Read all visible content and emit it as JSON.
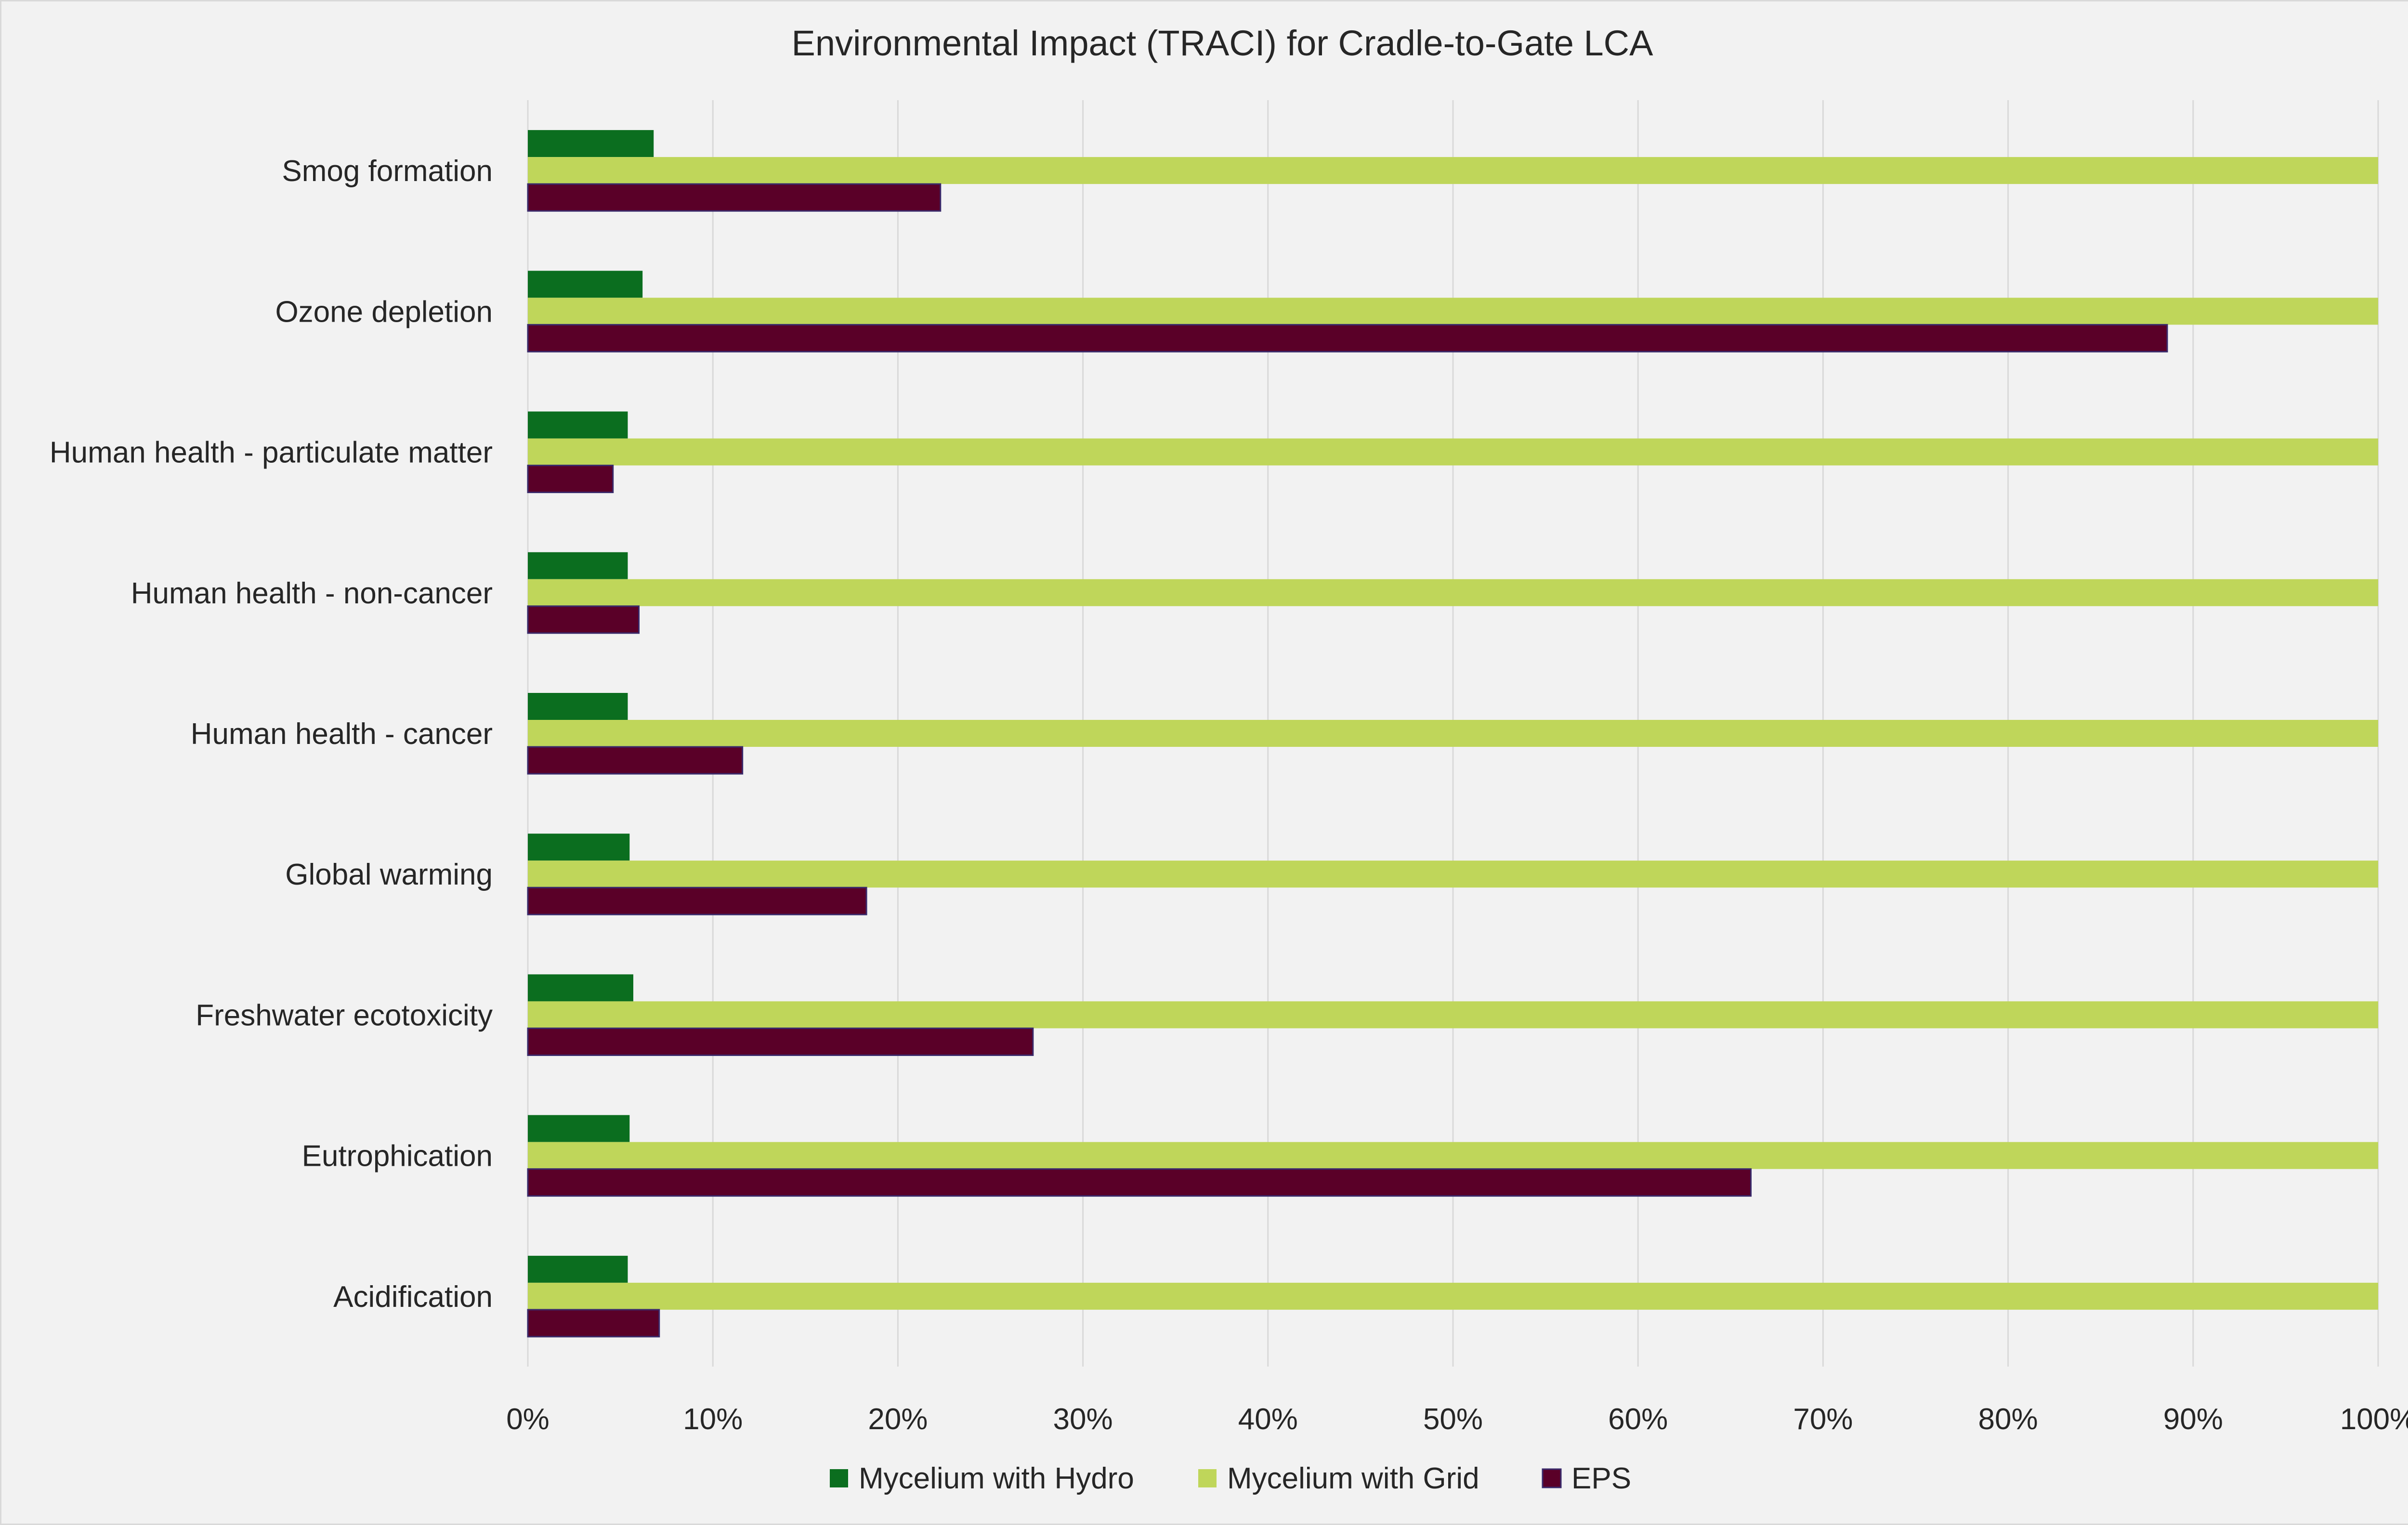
{
  "chart_data": {
    "type": "bar",
    "orientation": "horizontal",
    "title": "Environmental Impact (TRACI) for Cradle-to-Gate LCA",
    "xlabel": "",
    "ylabel": "",
    "xlim": [
      0,
      100
    ],
    "x_ticks": [
      "0%",
      "10%",
      "20%",
      "30%",
      "40%",
      "50%",
      "60%",
      "70%",
      "80%",
      "90%",
      "100%"
    ],
    "grid": true,
    "legend_position": "bottom",
    "categories": [
      "Smog formation",
      "Ozone depletion",
      "Human health - particulate matter",
      "Human health - non-cancer",
      "Human health - cancer",
      "Global warming",
      "Freshwater ecotoxicity",
      "Eutrophication",
      "Acidification"
    ],
    "series": [
      {
        "name": "Mycelium with Hydro",
        "color": "#0b6e1f",
        "values": [
          6.8,
          6.2,
          5.4,
          5.4,
          5.4,
          5.5,
          5.7,
          5.5,
          5.4
        ]
      },
      {
        "name": "Mycelium with Grid",
        "color": "#bfd65a",
        "values": [
          100,
          100,
          100,
          100,
          100,
          100,
          100,
          100,
          100
        ]
      },
      {
        "name": "EPS",
        "color": "#5a0028",
        "values": [
          22.3,
          88.6,
          4.6,
          6.0,
          11.6,
          18.3,
          27.3,
          66.1,
          7.1
        ]
      }
    ]
  }
}
